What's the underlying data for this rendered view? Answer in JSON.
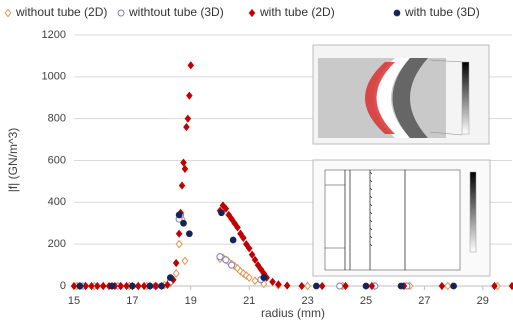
{
  "chart_data": {
    "type": "scatter",
    "xlabel": "radius (mm)",
    "ylabel": "|f| (GN/m^3)",
    "xlim": [
      15,
      30
    ],
    "xticks": [
      15,
      17,
      19,
      21,
      23,
      25,
      27,
      29
    ],
    "ylim": [
      0,
      1200
    ],
    "yticks": [
      0,
      200,
      400,
      600,
      800,
      1000,
      1200
    ],
    "grid": true,
    "legend": "top",
    "series": [
      {
        "name": "without tube (2D)",
        "color": "#e8924a",
        "marker": "diamond-open",
        "x": [
          15.1,
          15.4,
          15.7,
          16.0,
          16.3,
          16.6,
          16.9,
          17.2,
          17.5,
          17.8,
          18.1,
          18.3,
          18.5,
          18.6,
          18.65,
          18.7,
          18.8,
          20.0,
          20.1,
          20.2,
          20.3,
          20.4,
          20.5,
          20.6,
          20.7,
          20.8,
          20.9,
          21.0,
          21.2,
          21.5,
          22.0,
          23.0,
          24.2,
          25.3,
          26.5,
          27.8,
          29.5
        ],
        "values": [
          0,
          0,
          0,
          0,
          0,
          0,
          0,
          0,
          0,
          0,
          5,
          15,
          60,
          200,
          330,
          320,
          120,
          130,
          135,
          125,
          115,
          105,
          95,
          85,
          70,
          60,
          50,
          40,
          25,
          10,
          3,
          0,
          0,
          0,
          0,
          0,
          0
        ]
      },
      {
        "name": "withtout tube (3D)",
        "color": "#7b7fc0",
        "marker": "circle-open",
        "x": [
          15.3,
          16.5,
          17.8,
          18.3,
          18.6,
          18.65,
          20.0,
          20.2,
          20.4,
          21.4,
          24.1,
          25.3,
          26.4
        ],
        "values": [
          0,
          0,
          0,
          20,
          320,
          340,
          140,
          125,
          100,
          30,
          0,
          0,
          0
        ]
      },
      {
        "name": "with tube (2D)",
        "color": "#c00000",
        "marker": "diamond",
        "x": [
          15.0,
          15.2,
          15.4,
          15.6,
          15.8,
          16.0,
          16.2,
          16.4,
          16.6,
          16.8,
          17.0,
          17.2,
          17.4,
          17.6,
          17.8,
          18.0,
          18.2,
          18.4,
          18.5,
          18.6,
          18.65,
          18.7,
          18.75,
          18.8,
          18.85,
          18.9,
          18.95,
          19.0,
          20.0,
          20.1,
          20.2,
          20.3,
          20.4,
          20.5,
          20.6,
          20.7,
          20.8,
          20.9,
          21.0,
          21.1,
          21.2,
          21.3,
          21.4,
          21.5,
          21.6,
          21.8,
          22.0,
          22.3,
          22.8,
          23.5,
          24.3,
          25.2,
          26.3,
          27.6,
          29.4,
          30.0
        ],
        "values": [
          0,
          0,
          0,
          0,
          0,
          0,
          0,
          0,
          0,
          0,
          0,
          0,
          0,
          0,
          0,
          0,
          5,
          30,
          110,
          250,
          350,
          480,
          590,
          560,
          760,
          800,
          910,
          1055,
          360,
          385,
          370,
          340,
          320,
          300,
          280,
          250,
          230,
          200,
          180,
          150,
          125,
          100,
          80,
          60,
          40,
          20,
          8,
          2,
          0,
          0,
          0,
          0,
          0,
          0,
          0,
          0
        ]
      },
      {
        "name": "with tube (3D)",
        "color": "#14245a",
        "marker": "circle",
        "x": [
          15.2,
          16.3,
          17.0,
          17.6,
          18.0,
          18.3,
          18.6,
          18.75,
          18.95,
          20.05,
          20.45,
          21.5,
          23.3,
          25.0,
          26.2,
          28.0
        ],
        "values": [
          0,
          0,
          0,
          0,
          0,
          40,
          340,
          300,
          250,
          350,
          220,
          40,
          0,
          0,
          0,
          0
        ]
      }
    ]
  }
}
